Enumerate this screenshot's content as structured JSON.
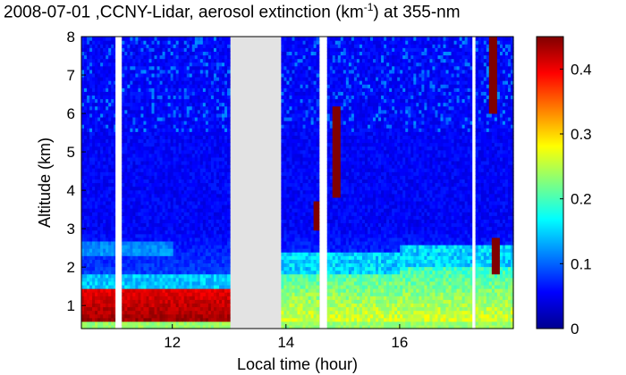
{
  "title": {
    "before": "2008-07-01 ,CCNY-Lidar, aerosol extinction (km",
    "sup": "-1",
    "after": ") at 355-nm"
  },
  "chart_data": {
    "type": "heatmap",
    "xlabel": "Local time (hour)",
    "ylabel": "Altitude (km)",
    "xlim": [
      10.4,
      18.0
    ],
    "ylim": [
      0.4,
      8.0
    ],
    "xticks": [
      12,
      14,
      16
    ],
    "yticks": [
      1,
      2,
      3,
      4,
      5,
      6,
      7,
      8
    ],
    "colorbar": {
      "range": [
        0,
        0.45
      ],
      "ticks": [
        0,
        0.1,
        0.2,
        0.3,
        0.4
      ],
      "colormap": "jet"
    },
    "data_gaps_hours": [
      [
        11.0,
        11.1
      ],
      [
        13.0,
        13.9
      ],
      [
        14.6,
        14.72
      ],
      [
        17.28,
        17.32
      ]
    ],
    "fields": {
      "background_upper": 0.04,
      "near_surface_layer_top_km": 0.55,
      "near_surface_value": 0.22,
      "morning_boundary_layer": {
        "time": [
          10.4,
          12.9
        ],
        "top_km": 1.4,
        "value": 0.43
      },
      "midday_boundary_layer": {
        "time": [
          13.9,
          17.9
        ],
        "top_km": [
          1.8,
          2.0
        ],
        "value": 0.25
      },
      "clouds": [
        {
          "time": 14.55,
          "alt_km": [
            3.0,
            3.7
          ],
          "value": 0.45
        },
        {
          "time": 14.9,
          "alt_km": [
            3.8,
            6.2
          ],
          "value": 0.45
        },
        {
          "time": 17.7,
          "alt_km": [
            1.8,
            2.8
          ],
          "value": 0.45
        },
        {
          "time": 17.65,
          "alt_km": [
            6.0,
            8.0
          ],
          "value": 0.45
        }
      ]
    }
  }
}
